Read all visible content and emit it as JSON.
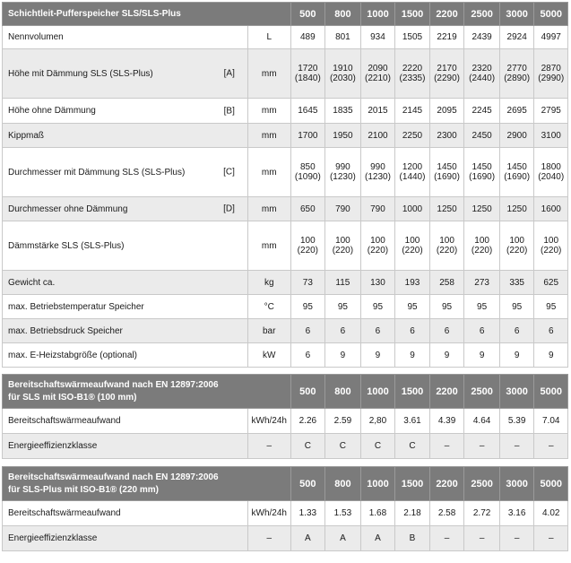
{
  "columns": [
    "500",
    "800",
    "1000",
    "1500",
    "2200",
    "2500",
    "3000",
    "5000"
  ],
  "table1": {
    "title": "Schichtleit-Pufferspeicher SLS/SLS-Plus",
    "rows": [
      {
        "label": "Nennvolumen",
        "ref": "",
        "unit": "L",
        "values": [
          "489",
          "801",
          "934",
          "1505",
          "2219",
          "2439",
          "2924",
          "4997"
        ]
      },
      {
        "label": "Höhe mit Dämmung SLS (SLS-Plus)",
        "ref": "[A]",
        "unit": "mm",
        "values": [
          "1720",
          "1910",
          "2090",
          "2220",
          "2170",
          "2320",
          "2770",
          "2870"
        ],
        "values2": [
          "(1840)",
          "(2030)",
          "(2210)",
          "(2335)",
          "(2290)",
          "(2440)",
          "(2890)",
          "(2990)"
        ]
      },
      {
        "label": "Höhe ohne Dämmung",
        "ref": "[B]",
        "unit": "mm",
        "values": [
          "1645",
          "1835",
          "2015",
          "2145",
          "2095",
          "2245",
          "2695",
          "2795"
        ]
      },
      {
        "label": "Kippmaß",
        "ref": "",
        "unit": "mm",
        "values": [
          "1700",
          "1950",
          "2100",
          "2250",
          "2300",
          "2450",
          "2900",
          "3100"
        ]
      },
      {
        "label": "Durchmesser mit Dämmung SLS (SLS-Plus)",
        "ref": "[C]",
        "unit": "mm",
        "values": [
          "850",
          "990",
          "990",
          "1200",
          "1450",
          "1450",
          "1450",
          "1800"
        ],
        "values2": [
          "(1090)",
          "(1230)",
          "(1230)",
          "(1440)",
          "(1690)",
          "(1690)",
          "(1690)",
          "(2040)"
        ]
      },
      {
        "label": "Durchmesser ohne Dämmung",
        "ref": "[D]",
        "unit": "mm",
        "values": [
          "650",
          "790",
          "790",
          "1000",
          "1250",
          "1250",
          "1250",
          "1600"
        ]
      },
      {
        "label": "Dämmstärke SLS (SLS-Plus)",
        "ref": "",
        "unit": "mm",
        "values": [
          "100",
          "100",
          "100",
          "100",
          "100",
          "100",
          "100",
          "100"
        ],
        "values2": [
          "(220)",
          "(220)",
          "(220)",
          "(220)",
          "(220)",
          "(220)",
          "(220)",
          "(220)"
        ]
      },
      {
        "label": "Gewicht ca.",
        "ref": "",
        "unit": "kg",
        "values": [
          "73",
          "115",
          "130",
          "193",
          "258",
          "273",
          "335",
          "625"
        ]
      },
      {
        "label": "max. Betriebstemperatur Speicher",
        "ref": "",
        "unit": "°C",
        "values": [
          "95",
          "95",
          "95",
          "95",
          "95",
          "95",
          "95",
          "95"
        ]
      },
      {
        "label": "max. Betriebsdruck Speicher",
        "ref": "",
        "unit": "bar",
        "values": [
          "6",
          "6",
          "6",
          "6",
          "6",
          "6",
          "6",
          "6"
        ]
      },
      {
        "label": "max. E-Heizstabgröße (optional)",
        "ref": "",
        "unit": "kW",
        "values": [
          "6",
          "9",
          "9",
          "9",
          "9",
          "9",
          "9",
          "9"
        ]
      }
    ]
  },
  "table2": {
    "title_line1": "Bereitschaftswärmeaufwand nach EN 12897:2006",
    "title_line2": "für SLS mit ISO-B1® (100 mm)",
    "rows": [
      {
        "label": "Bereitschaftswärmeaufwand",
        "unit": "kWh/24h",
        "values": [
          "2.26",
          "2.59",
          "2,80",
          "3.61",
          "4.39",
          "4.64",
          "5.39",
          "7.04"
        ]
      },
      {
        "label": "Energieeffizienzklasse",
        "unit": "–",
        "values": [
          "C",
          "C",
          "C",
          "C",
          "–",
          "–",
          "–",
          "–"
        ]
      }
    ]
  },
  "table3": {
    "title_line1": "Bereitschaftswärmeaufwand nach EN 12897:2006",
    "title_line2": "für SLS-Plus mit ISO-B1® (220 mm)",
    "rows": [
      {
        "label": "Bereitschaftswärmeaufwand",
        "unit": "kWh/24h",
        "values": [
          "1.33",
          "1.53",
          "1.68",
          "2.18",
          "2.58",
          "2.72",
          "3.16",
          "4.02"
        ]
      },
      {
        "label": "Energieeffizienzklasse",
        "unit": "–",
        "values": [
          "A",
          "A",
          "A",
          "B",
          "–",
          "–",
          "–",
          "–"
        ]
      }
    ]
  },
  "colors": {
    "header_bg": "#7b7b7b",
    "stripe_bg": "#ebebeb",
    "row_bg": "#ffffff",
    "text": "#1a1a1a",
    "border": "#c9c9c9"
  }
}
